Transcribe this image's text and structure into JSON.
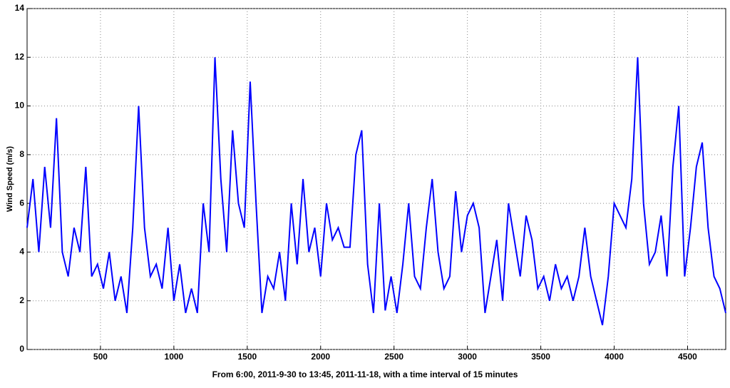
{
  "chart_data": {
    "type": "line",
    "xlabel": "From 6:00, 2011-9-30 to 13:45, 2011-11-18, with a time interval of 15 minutes",
    "ylabel": "Wind Speed (m/s)",
    "x": [
      0,
      40,
      80,
      120,
      160,
      200,
      240,
      280,
      320,
      360,
      400,
      440,
      480,
      520,
      560,
      600,
      640,
      680,
      720,
      760,
      800,
      840,
      880,
      920,
      960,
      1000,
      1040,
      1080,
      1120,
      1160,
      1200,
      1240,
      1280,
      1320,
      1360,
      1400,
      1440,
      1480,
      1520,
      1560,
      1600,
      1640,
      1680,
      1720,
      1760,
      1800,
      1840,
      1880,
      1920,
      1960,
      2000,
      2040,
      2080,
      2120,
      2160,
      2200,
      2240,
      2280,
      2320,
      2360,
      2400,
      2440,
      2480,
      2520,
      2560,
      2600,
      2640,
      2680,
      2720,
      2760,
      2800,
      2840,
      2880,
      2920,
      2960,
      3000,
      3040,
      3080,
      3120,
      3160,
      3200,
      3240,
      3280,
      3320,
      3360,
      3400,
      3440,
      3480,
      3520,
      3560,
      3600,
      3640,
      3680,
      3720,
      3760,
      3800,
      3840,
      3880,
      3920,
      3960,
      4000,
      4040,
      4080,
      4120,
      4160,
      4200,
      4240,
      4280,
      4320,
      4360,
      4400,
      4440,
      4480,
      4520,
      4560,
      4600,
      4640,
      4680,
      4720,
      4760
    ],
    "values": [
      5,
      7,
      4,
      7.5,
      5,
      9.5,
      4,
      3,
      5,
      4,
      7.5,
      3,
      3.5,
      2.5,
      4,
      2,
      3,
      1.5,
      5,
      10,
      5,
      3,
      3.5,
      2.5,
      5,
      2,
      3.5,
      1.5,
      2.5,
      1.5,
      6,
      4,
      12,
      7,
      4,
      9,
      6,
      5,
      11,
      6,
      1.5,
      3,
      2.5,
      4,
      2,
      6,
      3.5,
      7,
      4,
      5,
      3,
      6,
      4.5,
      5,
      4.2,
      4.2,
      8,
      9,
      3.5,
      1.5,
      6,
      1.6,
      3,
      1.5,
      3.5,
      6,
      3,
      2.5,
      5,
      7,
      4,
      2.5,
      3,
      6.5,
      4,
      5.5,
      6,
      5,
      1.5,
      3,
      4.5,
      2,
      6,
      4.5,
      3,
      5.5,
      4.5,
      2.5,
      3,
      2,
      3.5,
      2.5,
      3,
      2,
      3,
      5,
      3,
      2,
      1,
      3,
      6,
      5.5,
      5,
      7,
      12,
      6,
      3.5,
      4,
      5.5,
      3,
      7.5,
      10,
      3,
      5,
      7.5,
      8.5,
      5,
      3,
      2.5,
      1.5
    ],
    "color": "#0000ff",
    "xlim": [
      0,
      4760
    ],
    "xticks": [
      500,
      1000,
      1500,
      2000,
      2500,
      3000,
      3500,
      4000,
      4500
    ],
    "ylim": [
      0,
      14
    ],
    "yticks": [
      0,
      2,
      4,
      6,
      8,
      10,
      12,
      14
    ],
    "grid": true
  }
}
